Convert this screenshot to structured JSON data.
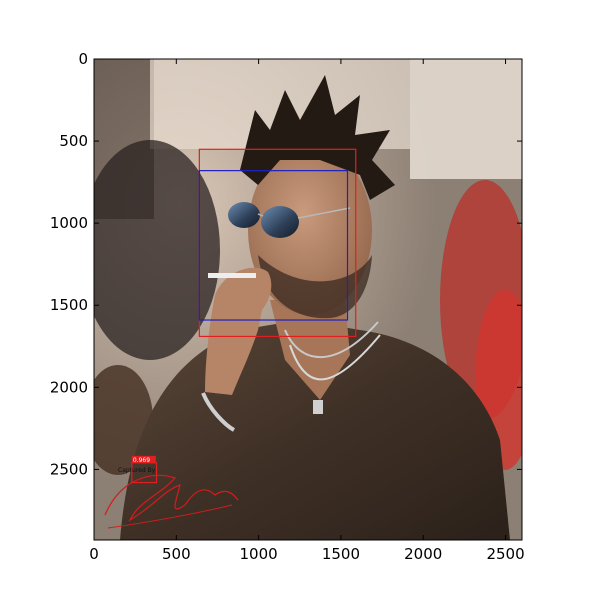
{
  "image_axes": {
    "x_range": [
      0,
      2600
    ],
    "y_range": [
      0,
      2930
    ],
    "y_inverted": true,
    "x_ticks": [
      0,
      500,
      1000,
      1500,
      2000,
      2500
    ],
    "y_ticks": [
      0,
      500,
      1000,
      1500,
      2000,
      2500
    ],
    "x_tick_labels": [
      "0",
      "500",
      "1000",
      "1500",
      "2000",
      "2500"
    ],
    "y_tick_labels": [
      "0",
      "500",
      "1000",
      "1500",
      "2000",
      "2500"
    ]
  },
  "detections": [
    {
      "label": "face-box-outer",
      "color": "#e02020",
      "x_range": [
        640,
        1590
      ],
      "y_range": [
        550,
        1690
      ]
    },
    {
      "label": "face-box-inner",
      "color": "#2020c0",
      "x_range": [
        640,
        1540
      ],
      "y_range": [
        680,
        1590
      ]
    },
    {
      "label": "signature-box",
      "color": "#e02020",
      "x_range": [
        230,
        380
      ],
      "y_range": [
        2460,
        2580
      ],
      "score_text": "0.969"
    }
  ],
  "watermark": {
    "text": "Captured By",
    "color": "#e02020"
  },
  "colors": {
    "frame": "#000000",
    "background": "#ffffff"
  }
}
